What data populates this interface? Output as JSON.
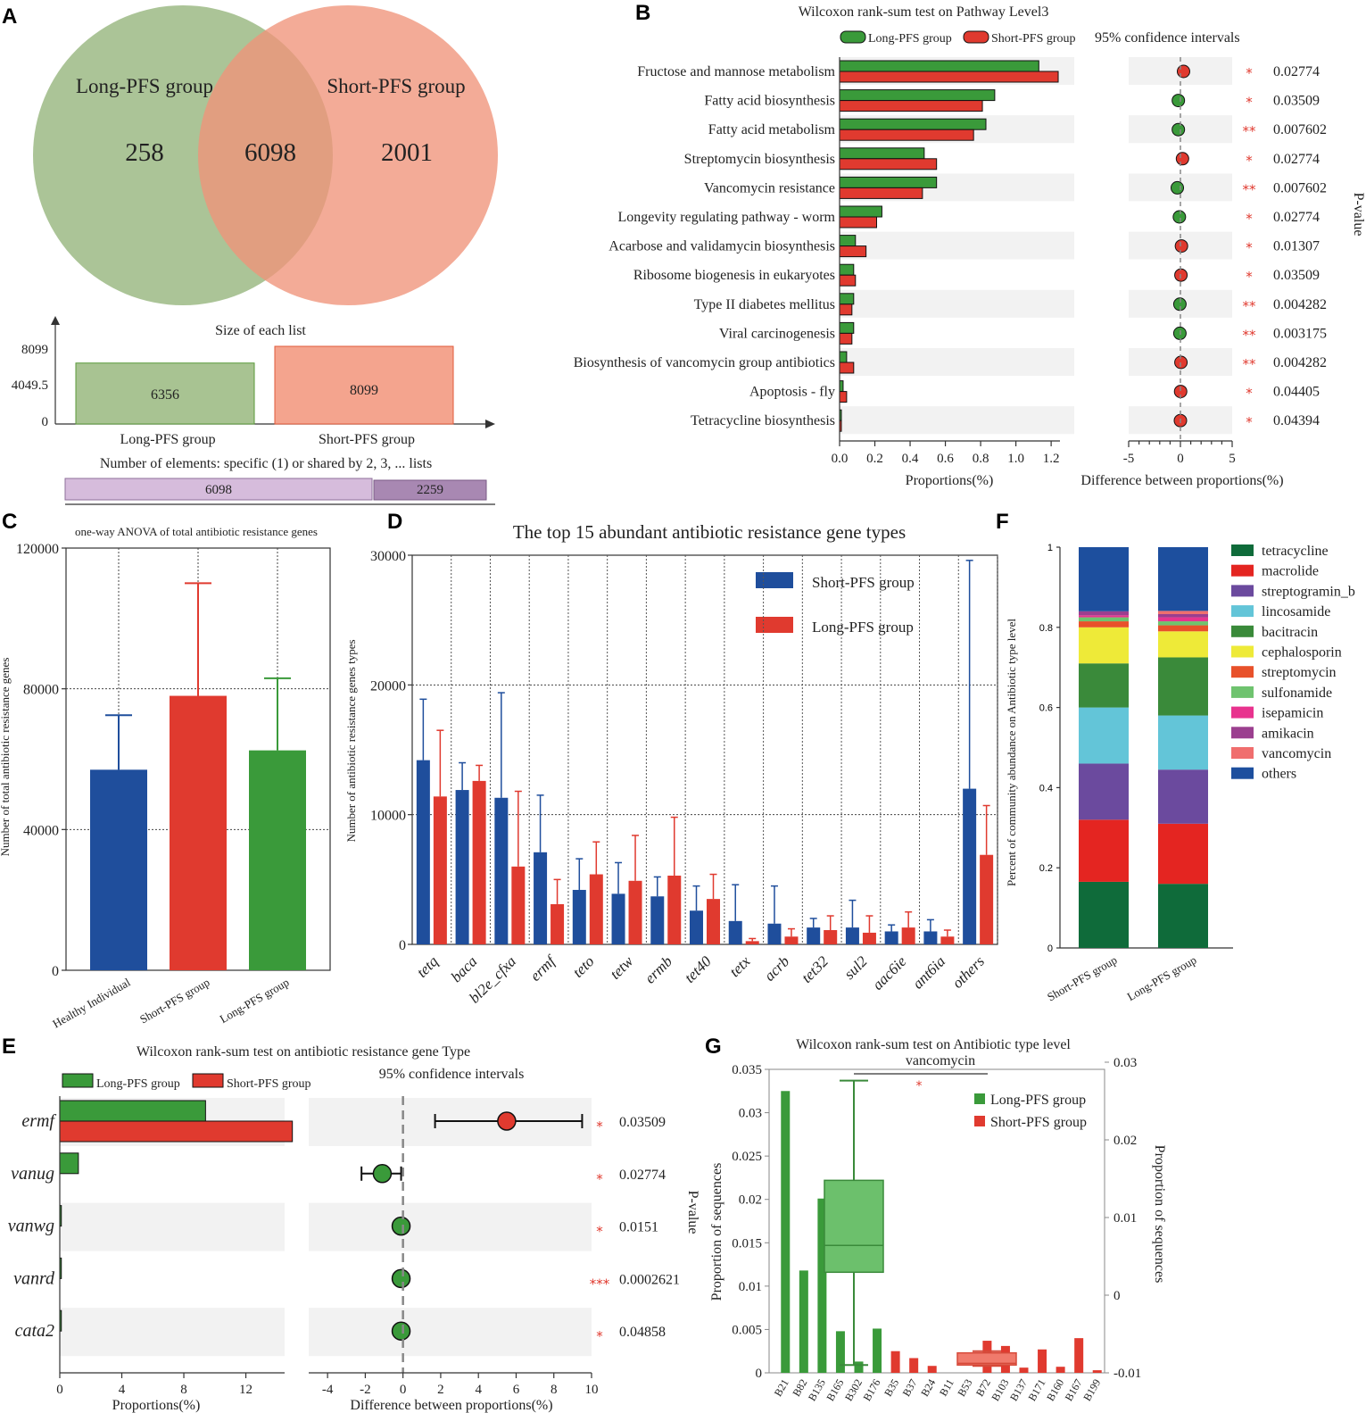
{
  "colors": {
    "green": "#3a9a3a",
    "red": "#e03a2f",
    "blue": "#1f4e9c",
    "vgreen": "#93b37a",
    "vred": "#f0937a",
    "purple1": "#d6bcdc",
    "purple2": "#a888b2"
  },
  "panels": {
    "A": "A",
    "B": "B",
    "C": "C",
    "D": "D",
    "E": "E",
    "F": "F",
    "G": "G"
  },
  "chart_data": [
    {
      "id": "A",
      "type": "venn",
      "sets": [
        {
          "name": "Long-PFS group",
          "only": "258"
        },
        {
          "name": "Short-PFS group",
          "only": "2001"
        }
      ],
      "intersection": "6098",
      "list_sizes": {
        "title": "Size of each list",
        "yticks": [
          "8099",
          "4049.5",
          "0"
        ],
        "bars": [
          {
            "name": "Long-PFS group",
            "value": 6356,
            "label": "6356"
          },
          {
            "name": "Short-PFS group",
            "value": 8099,
            "label": "8099"
          }
        ]
      },
      "shared": {
        "title": "Number of elements: specific (1) or shared by 2, 3, ... lists",
        "bars": [
          {
            "label": "6098",
            "value": 6098
          },
          {
            "label": "2259",
            "value": 2259
          }
        ]
      }
    },
    {
      "id": "B",
      "type": "bar",
      "title": "Wilcoxon rank-sum test on Pathway Level3",
      "legend": [
        "Long-PFS group",
        "Short-PFS group"
      ],
      "ci_label": "95% confidence intervals",
      "xlabel": "Proportions(%)",
      "ci_xlabel": "Difference between proportions(%)",
      "pvalue_label": "P-value",
      "xticks": [
        "0.0",
        "0.2",
        "0.4",
        "0.6",
        "0.8",
        "1.0",
        "1.2"
      ],
      "ci_ticks": [
        "-5",
        "0",
        "5"
      ],
      "xlim": [
        0,
        1.25
      ],
      "ci_lim": [
        -5,
        5
      ],
      "rows": [
        {
          "name": "Fructose and mannose metabolism",
          "long": 1.13,
          "short": 1.24,
          "diff": 0.3,
          "stars": "*",
          "p": "0.02774"
        },
        {
          "name": "Fatty acid biosynthesis",
          "long": 0.88,
          "short": 0.81,
          "diff": -0.2,
          "stars": "*",
          "p": "0.03509"
        },
        {
          "name": "Fatty acid metabolism",
          "long": 0.83,
          "short": 0.76,
          "diff": -0.2,
          "stars": "**",
          "p": "0.007602"
        },
        {
          "name": "Streptomycin biosynthesis",
          "long": 0.48,
          "short": 0.55,
          "diff": 0.2,
          "stars": "*",
          "p": "0.02774"
        },
        {
          "name": "Vancomycin resistance",
          "long": 0.55,
          "short": 0.47,
          "diff": -0.3,
          "stars": "**",
          "p": "0.007602"
        },
        {
          "name": "Longevity regulating pathway - worm",
          "long": 0.24,
          "short": 0.21,
          "diff": -0.1,
          "stars": "*",
          "p": "0.02774"
        },
        {
          "name": "Acarbose and validamycin biosynthesis",
          "long": 0.09,
          "short": 0.15,
          "diff": 0.1,
          "stars": "*",
          "p": "0.01307"
        },
        {
          "name": "Ribosome biogenesis in eukaryotes",
          "long": 0.08,
          "short": 0.09,
          "diff": 0.05,
          "stars": "*",
          "p": "0.03509"
        },
        {
          "name": "Type II diabetes mellitus",
          "long": 0.08,
          "short": 0.07,
          "diff": -0.05,
          "stars": "**",
          "p": "0.004282"
        },
        {
          "name": "Viral carcinogenesis",
          "long": 0.08,
          "short": 0.07,
          "diff": -0.05,
          "stars": "**",
          "p": "0.003175"
        },
        {
          "name": "Biosynthesis of vancomycin group antibiotics",
          "long": 0.04,
          "short": 0.08,
          "diff": 0.05,
          "stars": "**",
          "p": "0.004282"
        },
        {
          "name": "Apoptosis - fly",
          "long": 0.02,
          "short": 0.04,
          "diff": 0.02,
          "stars": "*",
          "p": "0.04405"
        },
        {
          "name": "Tetracycline biosynthesis",
          "long": 0.01,
          "short": 0.01,
          "diff": 0.0,
          "stars": "*",
          "p": "0.04394"
        }
      ]
    },
    {
      "id": "C",
      "type": "bar",
      "title": "one-way ANOVA of total antibiotic resistance genes",
      "ylabel": "Number of total antibiotic resistance genes",
      "ylim": [
        0,
        120000
      ],
      "yticks": [
        "0",
        "40000",
        "80000",
        "120000"
      ],
      "categories": [
        "Healthy Individual",
        "Short-PFS group",
        "Long-PFS group"
      ],
      "values": [
        57000,
        78000,
        62500
      ],
      "errors": [
        72500,
        110000,
        83000
      ]
    },
    {
      "id": "D",
      "type": "bar",
      "title": "The top 15 abundant antibiotic resistance gene types",
      "ylabel": "Number of antibiotic resistance genes types",
      "ylim": [
        0,
        30000
      ],
      "yticks": [
        "0",
        "10000",
        "20000",
        "30000"
      ],
      "categories": [
        "tetq",
        "baca",
        "bl2e_cfxa",
        "ermf",
        "teto",
        "tetw",
        "ermb",
        "tet40",
        "tetx",
        "acrb",
        "tet32",
        "sul2",
        "aac6ie",
        "ant6ia",
        "others"
      ],
      "series": [
        {
          "name": "Short-PFS group",
          "values": [
            14200,
            11900,
            11300,
            7100,
            4200,
            3900,
            3700,
            2600,
            1800,
            1600,
            1300,
            1300,
            1000,
            1000,
            12000
          ],
          "errors": [
            18900,
            14000,
            19400,
            11500,
            6600,
            6300,
            5200,
            4500,
            4600,
            4500,
            2000,
            3400,
            1500,
            1900,
            29600
          ]
        },
        {
          "name": "Long-PFS group",
          "values": [
            11400,
            12600,
            6000,
            3100,
            5400,
            4900,
            5300,
            3500,
            250,
            600,
            1100,
            900,
            1300,
            600,
            6900
          ],
          "errors": [
            16500,
            13800,
            11800,
            5000,
            7900,
            8400,
            9800,
            5400,
            450,
            1200,
            2200,
            2200,
            2500,
            1100,
            10700
          ]
        }
      ]
    },
    {
      "id": "E",
      "type": "bar",
      "title": "Wilcoxon rank-sum test on antibiotic resistance gene Type",
      "legend": [
        "Long-PFS group",
        "Short-PFS group"
      ],
      "ci_label": "95% confidence intervals",
      "xlabel": "Proportions(%)",
      "ci_xlabel": "Difference between proportions(%)",
      "pvalue_label": "P-value",
      "xticks": [
        "0",
        "4",
        "8",
        "12"
      ],
      "ci_ticks": [
        "-4",
        "-2",
        "0",
        "2",
        "4",
        "6",
        "8",
        "10"
      ],
      "xlim": [
        0,
        14.5
      ],
      "ci_lim": [
        -5,
        10
      ],
      "rows": [
        {
          "name": "ermf",
          "long": 9.4,
          "short": 15.0,
          "diff": 5.5,
          "ci": [
            1.7,
            9.5
          ],
          "stars": "*",
          "p": "0.03509"
        },
        {
          "name": "vanug",
          "long": 1.2,
          "short": 0.0,
          "diff": -1.1,
          "ci": [
            -2.2,
            -0.1
          ],
          "stars": "*",
          "p": "0.02774"
        },
        {
          "name": "vanwg",
          "long": 0.1,
          "short": 0.0,
          "diff": -0.1,
          "ci": [
            -0.3,
            0.1
          ],
          "stars": "*",
          "p": "0.0151"
        },
        {
          "name": "vanrd",
          "long": 0.1,
          "short": 0.0,
          "diff": -0.1,
          "ci": [
            -0.3,
            0.1
          ],
          "stars": "***",
          "p": "0.0002621"
        },
        {
          "name": "cata2",
          "long": 0.1,
          "short": 0.0,
          "diff": -0.1,
          "ci": [
            -0.3,
            0.1
          ],
          "stars": "*",
          "p": "0.04858"
        }
      ]
    },
    {
      "id": "F",
      "type": "bar",
      "stacked": true,
      "ylabel": "Percent of community abundance on Antibiotic type level",
      "yticks": [
        "0",
        "0.2",
        "0.4",
        "0.6",
        "0.8",
        "1"
      ],
      "ylim": [
        0,
        1
      ],
      "categories": [
        "Short-PFS group",
        "Long-PFS group"
      ],
      "series": [
        {
          "name": "tetracycline",
          "color": "#0f6b3a",
          "values": [
            0.165,
            0.16
          ]
        },
        {
          "name": "macrolide",
          "color": "#e42521",
          "values": [
            0.155,
            0.15
          ]
        },
        {
          "name": "streptogramin_b",
          "color": "#6b4a9e",
          "values": [
            0.14,
            0.135
          ]
        },
        {
          "name": "lincosamide",
          "color": "#63c5d8",
          "values": [
            0.14,
            0.135
          ]
        },
        {
          "name": "bacitracin",
          "color": "#3a8a3a",
          "values": [
            0.11,
            0.145
          ]
        },
        {
          "name": "cephalosporin",
          "color": "#eeea38",
          "values": [
            0.09,
            0.065
          ]
        },
        {
          "name": "streptomycin",
          "color": "#e8512a",
          "values": [
            0.015,
            0.015
          ]
        },
        {
          "name": "sulfonamide",
          "color": "#6fc36f",
          "values": [
            0.01,
            0.01
          ]
        },
        {
          "name": "isepamicin",
          "color": "#e8338e",
          "values": [
            0.005,
            0.01
          ]
        },
        {
          "name": "amikacin",
          "color": "#9b3f8f",
          "values": [
            0.01,
            0.008
          ]
        },
        {
          "name": "vancomycin",
          "color": "#f06e6e",
          "values": [
            0.0,
            0.008
          ]
        },
        {
          "name": "others",
          "color": "#1d4f9e",
          "values": [
            0.16,
            0.159
          ]
        }
      ]
    },
    {
      "id": "G",
      "type": "bar",
      "title": "Wilcoxon rank-sum test on Antibiotic type level",
      "subtitle": "vancomycin",
      "ylabel": "Proportion of sequences",
      "y2label": "Proportion of sequences",
      "significance": "*",
      "legend": [
        "Long-PFS group",
        "Short-PFS group"
      ],
      "ylim": [
        0,
        0.035
      ],
      "yticks": [
        "0",
        "0.005",
        "0.01",
        "0.015",
        "0.02",
        "0.025",
        "0.03",
        "0.035"
      ],
      "y2lim": [
        -0.01,
        0.03
      ],
      "y2ticks": [
        "-0.01",
        "0",
        "0.01",
        "0.02",
        "0.03"
      ],
      "categories": [
        "B21",
        "B82",
        "B135",
        "B165",
        "B302",
        "B176",
        "B35",
        "B37",
        "B24",
        "B11",
        "B53",
        "B72",
        "B103",
        "B137",
        "B171",
        "B160",
        "B167",
        "B199"
      ],
      "values": [
        0.0325,
        0.0118,
        0.0201,
        0.0048,
        0.0013,
        0.0051,
        0.0025,
        0.0017,
        0.0008,
        0.0,
        0.0,
        0.0037,
        0.0031,
        0.0006,
        0.0027,
        0.0007,
        0.004,
        0.0003
      ],
      "group": [
        "L",
        "L",
        "L",
        "L",
        "L",
        "L",
        "S",
        "S",
        "S",
        "S",
        "S",
        "S",
        "S",
        "S",
        "S",
        "S",
        "S",
        "S"
      ],
      "boxplots": [
        {
          "name": "Long-PFS group",
          "min": 0.0009,
          "q1": 0.0116,
          "median": 0.0147,
          "q3": 0.0222,
          "max": 0.0337
        },
        {
          "name": "Short-PFS group",
          "min": 0.0008,
          "q1": 0.0009,
          "median": 0.0011,
          "q3": 0.0023,
          "max": 0.0025
        }
      ]
    }
  ]
}
